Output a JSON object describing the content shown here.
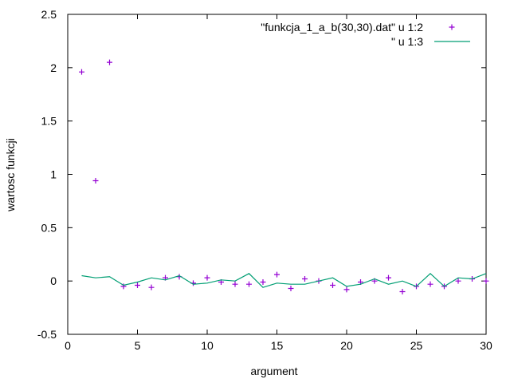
{
  "chart_data": {
    "type": "line",
    "xlabel": "argument",
    "ylabel": "wartosc funkcji",
    "xlim": [
      0,
      30
    ],
    "ylim": [
      -0.5,
      2.5
    ],
    "xticks": [
      0,
      5,
      10,
      15,
      20,
      25,
      30
    ],
    "xtick_labels": [
      "0",
      "5",
      "10",
      "15",
      "20",
      "25",
      "30"
    ],
    "yticks": [
      -0.5,
      0,
      0.5,
      1,
      1.5,
      2,
      2.5
    ],
    "ytick_labels": [
      "-0.5",
      "0",
      "0.5",
      "1",
      "1.5",
      "2",
      "2.5"
    ],
    "grid": false,
    "legend_position": "top-right",
    "series": [
      {
        "name": "\"funkcja_1_a_b(30,30).dat\" u 1:2",
        "style": "points",
        "marker": "plus",
        "color": "#9400d3",
        "x": [
          1,
          2,
          3,
          4,
          5,
          6,
          7,
          8,
          9,
          10,
          11,
          12,
          13,
          14,
          15,
          16,
          17,
          18,
          19,
          20,
          21,
          22,
          23,
          24,
          25,
          26,
          27,
          28,
          29,
          30
        ],
        "y": [
          1.96,
          0.94,
          2.05,
          -0.05,
          -0.04,
          -0.06,
          0.03,
          0.04,
          -0.02,
          0.03,
          -0.01,
          -0.03,
          -0.03,
          -0.01,
          0.06,
          -0.07,
          0.02,
          0.0,
          -0.04,
          -0.08,
          -0.01,
          0.0,
          0.03,
          -0.1,
          -0.05,
          -0.03,
          -0.05,
          0.0,
          0.02,
          0.0
        ]
      },
      {
        "name": "\" u 1:3",
        "style": "line",
        "color": "#009e73",
        "x": [
          1,
          2,
          3,
          4,
          5,
          6,
          7,
          8,
          9,
          10,
          11,
          12,
          13,
          14,
          15,
          16,
          17,
          18,
          19,
          20,
          21,
          22,
          23,
          24,
          25,
          26,
          27,
          28,
          29,
          30
        ],
        "y": [
          0.05,
          0.03,
          0.04,
          -0.04,
          -0.01,
          0.03,
          0.01,
          0.05,
          -0.03,
          -0.02,
          0.01,
          0.0,
          0.07,
          -0.06,
          -0.02,
          -0.03,
          -0.03,
          0.0,
          0.03,
          -0.05,
          -0.03,
          0.02,
          -0.03,
          0.0,
          -0.05,
          0.07,
          -0.05,
          0.03,
          0.02,
          0.07
        ]
      }
    ]
  }
}
